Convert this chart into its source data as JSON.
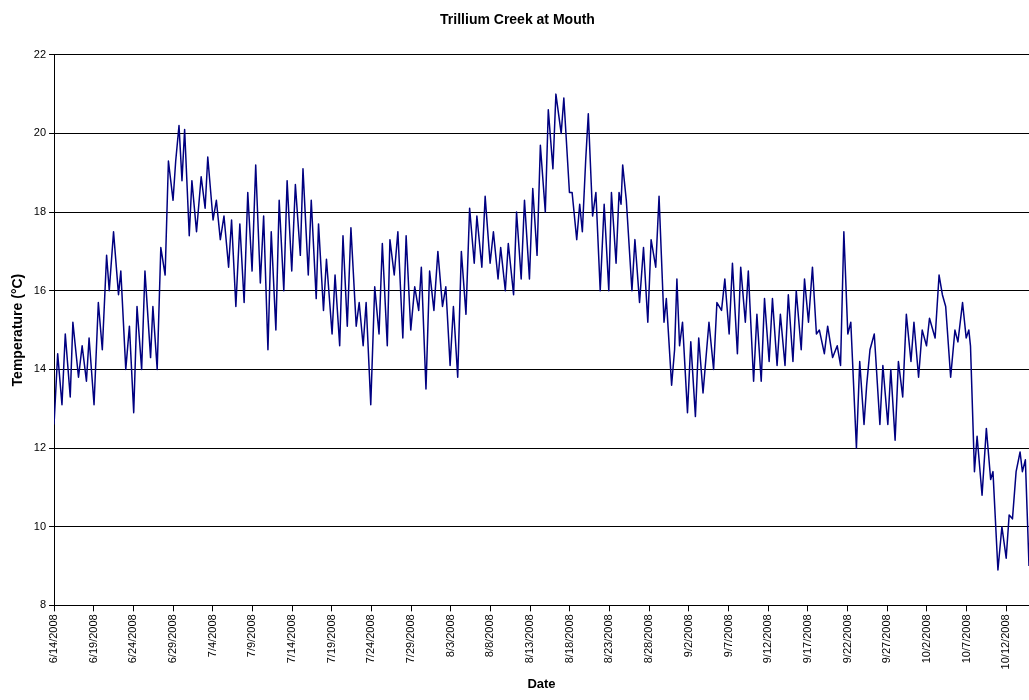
{
  "chart_data": {
    "type": "line",
    "title": "Trillium Creek at Mouth",
    "xlabel": "Date",
    "ylabel": "Temperature (°C)",
    "xlim": [
      "2008-06-14",
      "2008-10-14T21:00"
    ],
    "xticks": [
      {
        "value": "2008-06-14",
        "label": "6/14/2008"
      },
      {
        "value": "2008-06-19",
        "label": "6/19/2008"
      },
      {
        "value": "2008-06-24",
        "label": "6/24/2008"
      },
      {
        "value": "2008-06-29",
        "label": "6/29/2008"
      },
      {
        "value": "2008-07-04",
        "label": "7/4/2008"
      },
      {
        "value": "2008-07-09",
        "label": "7/9/2008"
      },
      {
        "value": "2008-07-14",
        "label": "7/14/2008"
      },
      {
        "value": "2008-07-19",
        "label": "7/19/2008"
      },
      {
        "value": "2008-07-24",
        "label": "7/24/2008"
      },
      {
        "value": "2008-07-29",
        "label": "7/29/2008"
      },
      {
        "value": "2008-08-03",
        "label": "8/3/2008"
      },
      {
        "value": "2008-08-08",
        "label": "8/8/2008"
      },
      {
        "value": "2008-08-13",
        "label": "8/13/2008"
      },
      {
        "value": "2008-08-18",
        "label": "8/18/2008"
      },
      {
        "value": "2008-08-23",
        "label": "8/23/2008"
      },
      {
        "value": "2008-08-28",
        "label": "8/28/2008"
      },
      {
        "value": "2008-09-02",
        "label": "9/2/2008"
      },
      {
        "value": "2008-09-07",
        "label": "9/7/2008"
      },
      {
        "value": "2008-09-12",
        "label": "9/12/2008"
      },
      {
        "value": "2008-09-17",
        "label": "9/17/2008"
      },
      {
        "value": "2008-09-22",
        "label": "9/22/2008"
      },
      {
        "value": "2008-09-27",
        "label": "9/27/2008"
      },
      {
        "value": "2008-10-02",
        "label": "10/2/2008"
      },
      {
        "value": "2008-10-07",
        "label": "10/7/2008"
      },
      {
        "value": "2008-10-12",
        "label": "10/12/2008"
      }
    ],
    "ylim": [
      8,
      22
    ],
    "yticks": [
      8,
      10,
      12,
      14,
      16,
      18,
      20,
      22
    ],
    "grid": "y",
    "legend": false,
    "marker": "none",
    "line_style": "solid",
    "series": [
      {
        "color": "#000080",
        "x": [
          "2008-06-14T00:00",
          "2008-06-14T11:00",
          "2008-06-15T00:00",
          "2008-06-15T10:00",
          "2008-06-16T01:00",
          "2008-06-16T09:00",
          "2008-06-17T02:00",
          "2008-06-17T13:00",
          "2008-06-18T02:00",
          "2008-06-18T10:00",
          "2008-06-19T01:00",
          "2008-06-19T14:00",
          "2008-06-20T02:00",
          "2008-06-20T15:00",
          "2008-06-20T23:00",
          "2008-06-21T12:00",
          "2008-06-22T03:00",
          "2008-06-22T10:00",
          "2008-06-23T01:00",
          "2008-06-23T12:00",
          "2008-06-24T01:00",
          "2008-06-24T11:00",
          "2008-06-25T01:00",
          "2008-06-25T11:00",
          "2008-06-26T04:00",
          "2008-06-26T11:00",
          "2008-06-27T00:00",
          "2008-06-27T11:00",
          "2008-06-28T00:00",
          "2008-06-28T10:00",
          "2008-06-29T00:00",
          "2008-06-29T08:00",
          "2008-06-29T18:00",
          "2008-06-30T03:00",
          "2008-06-30T11:00",
          "2008-07-01T01:00",
          "2008-07-01T09:00",
          "2008-07-01T23:00",
          "2008-07-02T13:00",
          "2008-07-03T01:00",
          "2008-07-03T09:00",
          "2008-07-04T01:00",
          "2008-07-04T11:00",
          "2008-07-04T23:00",
          "2008-07-05T10:00",
          "2008-07-06T00:00",
          "2008-07-06T09:00",
          "2008-07-06T22:00",
          "2008-07-07T10:00",
          "2008-07-07T23:00",
          "2008-07-08T10:00",
          "2008-07-08T23:00",
          "2008-07-09T10:00",
          "2008-07-10T00:00",
          "2008-07-10T10:00",
          "2008-07-10T23:00",
          "2008-07-11T09:00",
          "2008-07-11T23:00",
          "2008-07-12T09:00",
          "2008-07-12T23:00",
          "2008-07-13T09:00",
          "2008-07-13T23:00",
          "2008-07-14T10:00",
          "2008-07-15T01:00",
          "2008-07-15T09:00",
          "2008-07-16T01:00",
          "2008-07-16T10:00",
          "2008-07-17T01:00",
          "2008-07-17T08:00",
          "2008-07-17T23:00",
          "2008-07-18T08:00",
          "2008-07-19T01:00",
          "2008-07-19T10:00",
          "2008-07-20T00:00",
          "2008-07-20T10:00",
          "2008-07-20T23:00",
          "2008-07-21T10:00",
          "2008-07-22T02:00",
          "2008-07-22T11:00",
          "2008-07-22T23:00",
          "2008-07-23T08:00",
          "2008-07-23T22:00",
          "2008-07-24T10:00",
          "2008-07-24T23:00",
          "2008-07-25T09:00",
          "2008-07-26T00:00",
          "2008-07-26T08:00",
          "2008-07-26T21:00",
          "2008-07-27T08:00",
          "2008-07-27T23:00",
          "2008-07-28T09:00",
          "2008-07-28T23:00",
          "2008-07-29T11:00",
          "2008-07-29T23:00",
          "2008-07-30T07:00",
          "2008-07-30T21:00",
          "2008-07-31T08:00",
          "2008-07-31T21:00",
          "2008-08-01T09:00",
          "2008-08-01T23:00",
          "2008-08-02T09:00",
          "2008-08-02T22:00",
          "2008-08-03T08:00",
          "2008-08-03T21:00",
          "2008-08-04T08:00",
          "2008-08-04T22:00",
          "2008-08-05T09:00",
          "2008-08-05T23:00",
          "2008-08-06T07:00",
          "2008-08-06T22:00",
          "2008-08-07T08:00",
          "2008-08-07T23:00",
          "2008-08-08T09:00",
          "2008-08-08T23:00",
          "2008-08-09T07:00",
          "2008-08-09T21:00",
          "2008-08-10T06:00",
          "2008-08-10T22:00",
          "2008-08-11T07:00",
          "2008-08-11T21:00",
          "2008-08-12T07:00",
          "2008-08-12T22:00",
          "2008-08-13T08:00",
          "2008-08-13T21:00",
          "2008-08-14T07:00",
          "2008-08-14T22:00",
          "2008-08-15T07:00",
          "2008-08-15T21:00",
          "2008-08-16T06:00",
          "2008-08-16T22:00",
          "2008-08-17T06:00",
          "2008-08-17T23:00",
          "2008-08-18T07:00",
          "2008-08-18T21:00",
          "2008-08-19T06:00",
          "2008-08-19T14:00",
          "2008-08-20T00:00",
          "2008-08-20T08:00",
          "2008-08-20T21:00",
          "2008-08-21T07:00",
          "2008-08-21T20:00",
          "2008-08-22T08:00",
          "2008-08-22T22:00",
          "2008-08-23T06:00",
          "2008-08-23T20:00",
          "2008-08-24T05:00",
          "2008-08-24T11:00",
          "2008-08-24T16:00",
          "2008-08-25T03:00",
          "2008-08-25T20:00",
          "2008-08-26T05:00",
          "2008-08-26T19:00",
          "2008-08-27T07:00",
          "2008-08-27T20:00",
          "2008-08-28T06:00",
          "2008-08-28T20:00",
          "2008-08-29T06:00",
          "2008-08-29T21:00",
          "2008-08-30T04:00",
          "2008-08-30T20:00",
          "2008-08-31T05:00",
          "2008-08-31T12:00",
          "2008-08-31T20:00",
          "2008-09-01T05:00",
          "2008-09-01T20:00",
          "2008-09-02T06:00",
          "2008-09-02T20:00",
          "2008-09-03T06:00",
          "2008-09-03T19:00",
          "2008-09-04T13:00",
          "2008-09-05T03:00",
          "2008-09-05T13:00",
          "2008-09-06T03:00",
          "2008-09-06T13:00",
          "2008-09-07T02:00",
          "2008-09-07T12:00",
          "2008-09-08T03:00",
          "2008-09-08T13:00",
          "2008-09-09T03:00",
          "2008-09-09T12:00",
          "2008-09-10T04:00",
          "2008-09-10T14:00",
          "2008-09-11T03:00",
          "2008-09-11T13:00",
          "2008-09-12T03:00",
          "2008-09-12T13:00",
          "2008-09-13T03:00",
          "2008-09-13T13:00",
          "2008-09-14T03:00",
          "2008-09-14T13:00",
          "2008-09-15T03:00",
          "2008-09-15T13:00",
          "2008-09-16T04:00",
          "2008-09-16T14:00",
          "2008-09-17T02:00",
          "2008-09-17T14:00",
          "2008-09-18T02:00",
          "2008-09-18T11:00",
          "2008-09-19T02:00",
          "2008-09-19T12:00",
          "2008-09-20T03:00",
          "2008-09-20T17:00",
          "2008-09-21T03:00",
          "2008-09-21T13:00",
          "2008-09-22T01:00",
          "2008-09-22T10:00",
          "2008-09-23T03:00",
          "2008-09-23T13:00",
          "2008-09-24T02:00",
          "2008-09-24T10:00",
          "2008-09-24T20:00",
          "2008-09-25T09:00",
          "2008-09-26T02:00",
          "2008-09-26T11:00",
          "2008-09-27T02:00",
          "2008-09-27T11:00",
          "2008-09-28T00:00",
          "2008-09-28T10:00",
          "2008-09-28T23:00",
          "2008-09-29T10:00",
          "2008-09-30T00:00",
          "2008-09-30T09:00",
          "2008-09-30T23:00",
          "2008-10-01T10:00",
          "2008-10-01T23:00",
          "2008-10-02T08:00",
          "2008-10-03T01:00",
          "2008-10-03T13:00",
          "2008-10-03T23:00",
          "2008-10-04T09:00",
          "2008-10-05T00:00",
          "2008-10-05T13:00",
          "2008-10-05T22:00",
          "2008-10-06T12:00",
          "2008-10-06T23:00",
          "2008-10-07T07:00",
          "2008-10-07T12:00",
          "2008-10-08T00:00",
          "2008-10-08T08:00",
          "2008-10-08T23:00",
          "2008-10-09T12:00",
          "2008-10-10T01:00",
          "2008-10-10T08:00",
          "2008-10-10T23:00",
          "2008-10-11T11:00",
          "2008-10-12T00:00",
          "2008-10-12T09:00",
          "2008-10-12T19:00",
          "2008-10-13T06:00",
          "2008-10-13T18:00",
          "2008-10-14T01:00",
          "2008-10-14T10:00",
          "2008-10-14T21:00"
        ],
        "values": [
          12.6,
          14.4,
          13.1,
          14.9,
          13.3,
          15.2,
          13.8,
          14.6,
          13.7,
          14.8,
          13.1,
          15.7,
          14.5,
          16.9,
          16.0,
          17.5,
          15.9,
          16.5,
          14.0,
          15.1,
          12.9,
          15.6,
          14.0,
          16.5,
          14.3,
          15.6,
          14.0,
          17.1,
          16.4,
          19.3,
          18.3,
          19.3,
          20.2,
          18.8,
          20.1,
          17.4,
          18.8,
          17.5,
          18.9,
          18.1,
          19.4,
          17.8,
          18.3,
          17.3,
          17.9,
          16.6,
          17.8,
          15.6,
          17.7,
          15.7,
          18.5,
          16.5,
          19.2,
          16.2,
          17.9,
          14.5,
          17.5,
          15.0,
          18.3,
          16.0,
          18.8,
          16.5,
          18.7,
          16.9,
          19.1,
          16.4,
          18.3,
          15.8,
          17.7,
          15.5,
          16.8,
          14.9,
          16.4,
          14.6,
          17.4,
          15.1,
          17.6,
          15.1,
          15.7,
          14.6,
          15.7,
          13.1,
          16.1,
          14.9,
          17.2,
          14.6,
          17.3,
          16.4,
          17.5,
          14.8,
          17.4,
          15.0,
          16.1,
          15.5,
          16.6,
          13.5,
          16.5,
          15.5,
          17.0,
          15.6,
          16.1,
          14.1,
          15.6,
          13.8,
          17.0,
          15.4,
          18.1,
          16.7,
          17.9,
          16.6,
          18.4,
          16.7,
          17.5,
          16.3,
          17.1,
          16.0,
          17.2,
          15.9,
          18.0,
          16.3,
          18.3,
          16.3,
          18.6,
          16.9,
          19.7,
          18.0,
          20.6,
          19.1,
          21.0,
          20.0,
          20.9,
          18.5,
          18.5,
          17.3,
          18.2,
          17.5,
          19.3,
          20.5,
          17.9,
          18.5,
          16.0,
          18.2,
          16.0,
          18.5,
          16.7,
          18.5,
          18.2,
          19.2,
          18.3,
          16.0,
          17.3,
          15.7,
          17.1,
          15.2,
          17.3,
          16.6,
          18.4,
          15.2,
          15.8,
          13.6,
          14.5,
          16.3,
          14.6,
          15.2,
          12.9,
          14.7,
          12.8,
          14.8,
          13.4,
          15.2,
          14.0,
          15.7,
          15.5,
          16.3,
          14.9,
          16.7,
          14.4,
          16.6,
          15.2,
          16.5,
          13.7,
          15.4,
          13.7,
          15.8,
          14.2,
          15.8,
          14.1,
          15.4,
          14.1,
          15.9,
          14.2,
          16.0,
          14.5,
          16.3,
          15.2,
          16.6,
          14.9,
          15.0,
          14.4,
          15.1,
          14.3,
          14.6,
          14.1,
          17.5,
          14.9,
          15.2,
          12.0,
          14.2,
          12.6,
          13.6,
          14.5,
          14.9,
          12.6,
          14.1,
          12.6,
          14.0,
          12.2,
          14.2,
          13.3,
          15.4,
          14.2,
          15.2,
          13.8,
          15.0,
          14.6,
          15.3,
          14.8,
          16.4,
          15.9,
          15.6,
          13.8,
          15.0,
          14.7,
          15.7,
          14.8,
          15.0,
          14.6,
          11.4,
          12.3,
          10.8,
          12.5,
          11.2,
          11.4,
          8.9,
          10.0,
          9.2,
          10.3,
          10.2,
          11.4,
          11.9,
          11.4,
          11.7,
          9.0
        ]
      }
    ]
  }
}
